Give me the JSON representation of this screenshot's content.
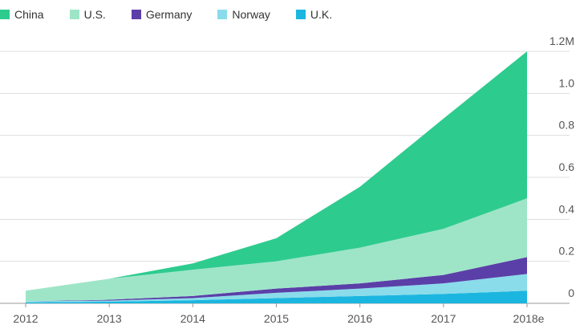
{
  "chart_data": {
    "type": "area",
    "stacked": true,
    "categories": [
      "2012",
      "2013",
      "2014",
      "2015",
      "2016",
      "2017",
      "2018e"
    ],
    "series": [
      {
        "name": "U.K.",
        "color": "#1bb6e0",
        "values": [
          0.005,
          0.008,
          0.015,
          0.025,
          0.035,
          0.045,
          0.06
        ]
      },
      {
        "name": "Norway",
        "color": "#8adcea",
        "values": [
          0.005,
          0.005,
          0.01,
          0.025,
          0.035,
          0.05,
          0.08
        ]
      },
      {
        "name": "Germany",
        "color": "#5b3fa8",
        "values": [
          0.0,
          0.004,
          0.01,
          0.02,
          0.025,
          0.04,
          0.08
        ]
      },
      {
        "name": "U.S.",
        "color": "#9ee5c8",
        "values": [
          0.05,
          0.1,
          0.125,
          0.13,
          0.17,
          0.22,
          0.28
        ]
      },
      {
        "name": "China",
        "color": "#2ecb8f",
        "values": [
          0.0,
          0.0,
          0.03,
          0.11,
          0.29,
          0.525,
          0.7
        ]
      }
    ],
    "legend_order": [
      "China",
      "U.S.",
      "Germany",
      "Norway",
      "U.K."
    ],
    "y_ticks": [
      "0",
      "0.2",
      "0.4",
      "0.6",
      "0.8",
      "1.0",
      "1.2M"
    ],
    "y_tick_values": [
      0,
      0.2,
      0.4,
      0.6,
      0.8,
      1.0,
      1.2
    ],
    "ylim": [
      0,
      1.2
    ],
    "y_axis_side": "right",
    "grid": true,
    "legend_position": "top-left",
    "title": "",
    "xlabel": "",
    "ylabel": ""
  }
}
